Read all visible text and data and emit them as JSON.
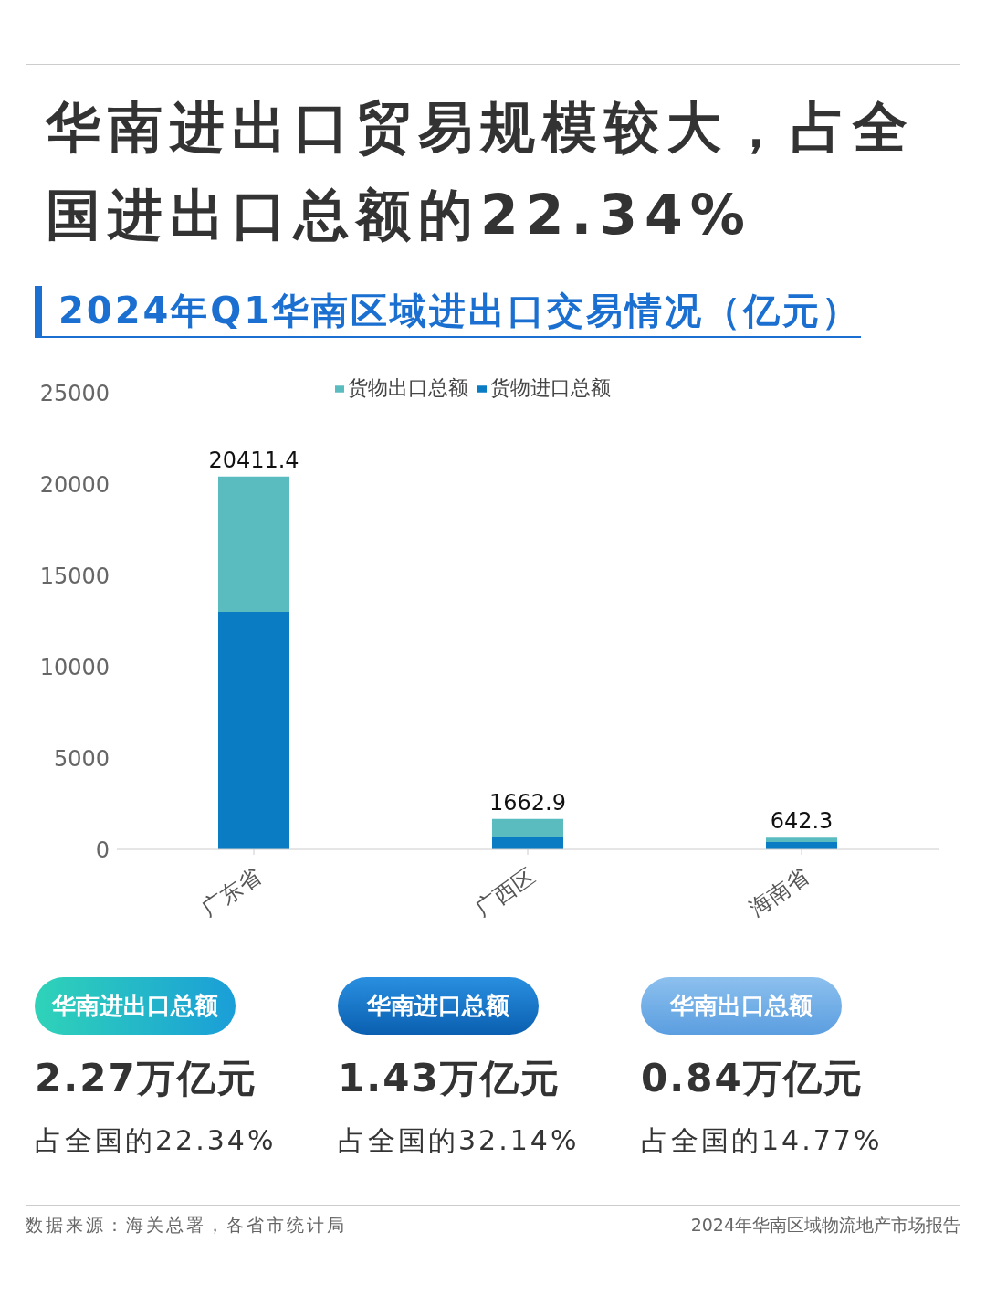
{
  "chart_data": {
    "type": "bar",
    "title": "华南进出口贸易规模较大，占全国进出口总额的22.34%",
    "subtitle": "2024年Q1华南区域进出口交易情况（亿元）",
    "categories": [
      "广东省",
      "广西区",
      "海南省"
    ],
    "series": [
      {
        "name": "货物进口总额",
        "color": "#0a7cc4",
        "values": [
          13000,
          650,
          400
        ]
      },
      {
        "name": "货物出口总额",
        "color": "#5bbcc0",
        "values": [
          7411.4,
          1012.9,
          242.3
        ]
      }
    ],
    "stacked": true,
    "totals": [
      "20411.4",
      "1662.9",
      "642.3"
    ],
    "ylim": [
      0,
      25000
    ],
    "yticks": [
      0,
      5000,
      10000,
      15000,
      20000,
      25000
    ],
    "grid": false,
    "legend": "top",
    "annotations": [
      "华南进出口总额",
      "2.27万亿元",
      "占全国的22.34%",
      "华南进口总额",
      "1.43万亿元",
      "占全国的32.14%",
      "华南出口总额",
      "0.84万亿元",
      "占全国的14.77%",
      "数据来源：海关总署，各省市统计局",
      "2024年华南区域物流地产市场报告"
    ]
  }
}
